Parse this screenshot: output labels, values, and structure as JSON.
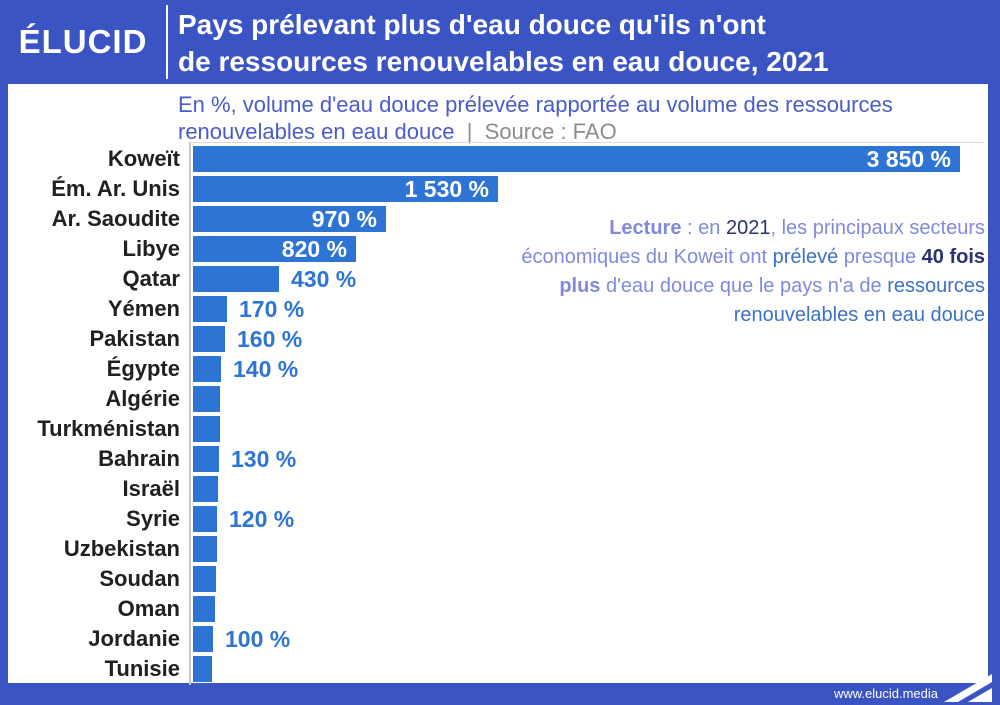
{
  "header": {
    "logo": "ÉLUCID",
    "title_line1": "Pays prélevant plus d'eau douce qu'ils n'ont",
    "title_line2": "de ressources renouvelables en eau douce, 2021"
  },
  "subtitle": {
    "line1": "En %, volume d'eau douce prélevée rapportée au volume des ressources",
    "line2_blue": "renouvelables en eau douce",
    "separator": "|",
    "source": "Source : FAO"
  },
  "chart_data": {
    "type": "bar",
    "orientation": "horizontal",
    "title": "Pays prélevant plus d'eau douce qu'ils n'ont de ressources renouvelables en eau douce, 2021",
    "unit": "%",
    "source": "FAO",
    "xlim": [
      0,
      3900
    ],
    "grid": "top-line-only",
    "bar_color": "#2e74d4",
    "categories": [
      "Koweït",
      "Ém. Ar. Unis",
      "Ar. Saoudite",
      "Libye",
      "Qatar",
      "Yémen",
      "Pakistan",
      "Égypte",
      "Algérie",
      "Turkménistan",
      "Bahrain",
      "Israël",
      "Syrie",
      "Uzbekistan",
      "Soudan",
      "Oman",
      "Jordanie",
      "Tunisie"
    ],
    "values": [
      3850,
      1530,
      970,
      820,
      430,
      170,
      160,
      140,
      138,
      134,
      130,
      124,
      120,
      118,
      115,
      110,
      100,
      96
    ],
    "value_labels": [
      "3 850 %",
      "1 530 %",
      "970 %",
      "820 %",
      "430 %",
      "170 %",
      "160 %",
      "140 %",
      null,
      null,
      "130 %",
      null,
      "120 %",
      null,
      null,
      null,
      "100 %",
      null
    ],
    "label_placement": [
      "inside",
      "inside",
      "inside",
      "inside",
      "outside",
      "outside",
      "outside",
      "outside",
      null,
      null,
      "outside",
      null,
      "outside",
      null,
      null,
      null,
      "outside",
      null
    ]
  },
  "lecture": {
    "lines": [
      [
        {
          "t": "Lecture",
          "c": "peri",
          "b": true
        },
        {
          "t": " : en ",
          "c": "peri"
        },
        {
          "t": "2021",
          "c": "navy"
        },
        {
          "t": ", les principaux secteurs",
          "c": "peri"
        }
      ],
      [
        {
          "t": "économiques du Koweit ont ",
          "c": "peri"
        },
        {
          "t": "prélevé",
          "c": "steel"
        },
        {
          "t": " presque ",
          "c": "peri"
        },
        {
          "t": "40 fois",
          "c": "navy",
          "b": true
        }
      ],
      [
        {
          "t": "plus",
          "c": "peri",
          "b": true
        },
        {
          "t": " d'eau douce que le pays n'a de ",
          "c": "peri"
        },
        {
          "t": "ressources",
          "c": "steel"
        }
      ],
      [
        {
          "t": "renouvelables en eau douce",
          "c": "steel"
        }
      ]
    ]
  },
  "footer": {
    "url": "www.elucid.media"
  },
  "colors": {
    "frame_blue": "#3b54c3",
    "bar_blue": "#2e74d4",
    "subtitle_blue": "#4a5cc9",
    "source_gray": "#8c8c8c",
    "label_dark": "#202020",
    "lecture_periwinkle": "#8289dc",
    "lecture_navy": "#2c3172",
    "lecture_steel_blue": "#3e70c6"
  }
}
